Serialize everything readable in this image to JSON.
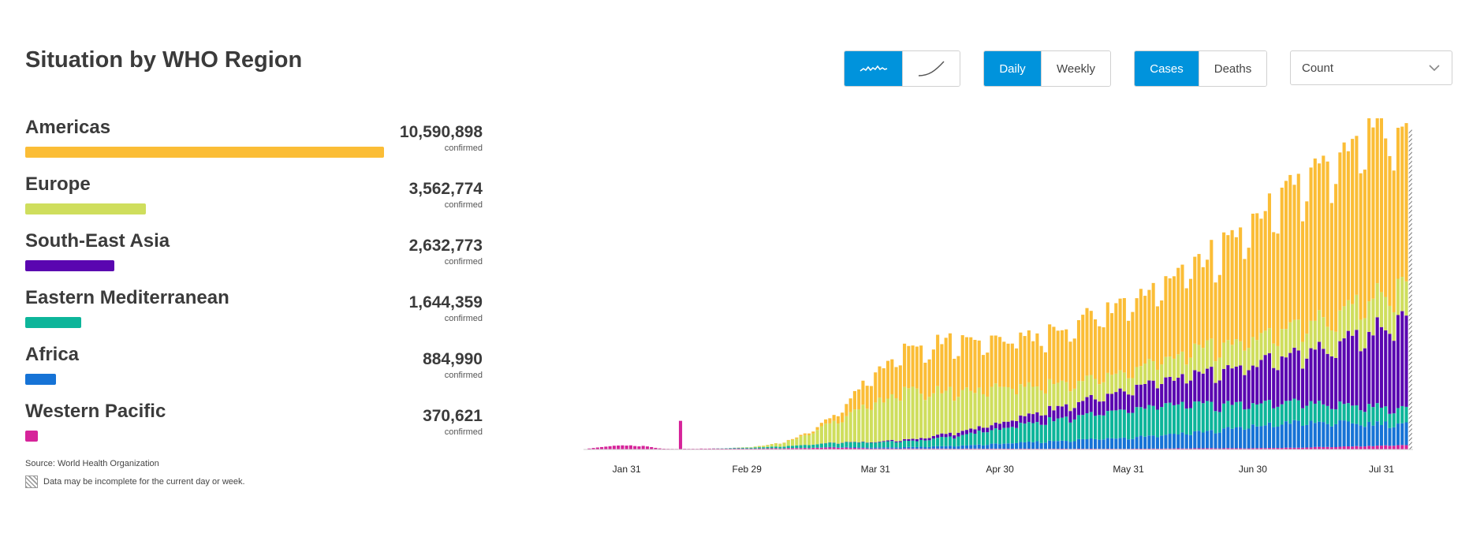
{
  "header": {
    "title": "Situation by WHO Region"
  },
  "controls": {
    "chart_style": [
      {
        "icon": "wavy-line-icon",
        "active": true
      },
      {
        "icon": "curve-line-icon",
        "active": false
      }
    ],
    "period": [
      {
        "label": "Daily",
        "active": true
      },
      {
        "label": "Weekly",
        "active": false
      }
    ],
    "metric": [
      {
        "label": "Cases",
        "active": true
      },
      {
        "label": "Deaths",
        "active": false
      }
    ],
    "scale_select": {
      "value": "Count"
    }
  },
  "regions": [
    {
      "name": "Americas",
      "count": "10,590,898",
      "sub": "confirmed",
      "color": "#fbbd36"
    },
    {
      "name": "Europe",
      "count": "3,562,774",
      "sub": "confirmed",
      "color": "#cfde5d"
    },
    {
      "name": "South-East Asia",
      "count": "2,632,773",
      "sub": "confirmed",
      "color": "#5a06b0"
    },
    {
      "name": "Eastern Mediterranean",
      "count": "1,644,359",
      "sub": "confirmed",
      "color": "#0db59a"
    },
    {
      "name": "Africa",
      "count": "884,990",
      "sub": "confirmed",
      "color": "#1673d6"
    },
    {
      "name": "Western Pacific",
      "count": "370,621",
      "sub": "confirmed",
      "color": "#d6249a"
    }
  ],
  "footer": {
    "source": "Source: World Health Organization",
    "incomplete": "Data may be incomplete for the current day or week."
  },
  "chart_data": {
    "type": "bar",
    "stacked": true,
    "x_start": "2020-01-21",
    "x_end": "2020-08-07",
    "x_ticks": [
      "Jan 31",
      "Feb 29",
      "Mar 31",
      "Apr 30",
      "May 31",
      "Jun 30",
      "Jul 31"
    ],
    "x_tick_dates": [
      "2020-01-31",
      "2020-02-29",
      "2020-03-31",
      "2020-04-30",
      "2020-05-31",
      "2020-06-30",
      "2020-07-31"
    ],
    "y_axis_shown": false,
    "grid": false,
    "last_day_incomplete": true,
    "series": [
      {
        "name": "Western Pacific",
        "color": "#d6249a",
        "anchors": [
          [
            0,
            300
          ],
          [
            6,
            2500
          ],
          [
            10,
            3000
          ],
          [
            15,
            2200
          ],
          [
            18,
            700
          ],
          [
            21,
            400
          ],
          [
            25,
            500
          ],
          [
            30,
            650
          ],
          [
            40,
            700
          ],
          [
            50,
            900
          ],
          [
            60,
            1400
          ],
          [
            70,
            700
          ],
          [
            80,
            700
          ],
          [
            90,
            600
          ],
          [
            100,
            600
          ],
          [
            110,
            500
          ],
          [
            120,
            500
          ],
          [
            130,
            500
          ],
          [
            140,
            700
          ],
          [
            150,
            900
          ],
          [
            160,
            900
          ],
          [
            170,
            1200
          ],
          [
            180,
            1900
          ],
          [
            185,
            2200
          ],
          [
            190,
            2500
          ],
          [
            198,
            3000
          ]
        ]
      },
      {
        "name": "Africa",
        "color": "#1673d6",
        "anchors": [
          [
            0,
            0
          ],
          [
            36,
            0
          ],
          [
            45,
            5
          ],
          [
            55,
            130
          ],
          [
            60,
            350
          ],
          [
            70,
            700
          ],
          [
            80,
            1100
          ],
          [
            90,
            2000
          ],
          [
            100,
            3500
          ],
          [
            110,
            5000
          ],
          [
            120,
            6500
          ],
          [
            130,
            8000
          ],
          [
            140,
            10000
          ],
          [
            150,
            12000
          ],
          [
            160,
            15000
          ],
          [
            170,
            18000
          ],
          [
            180,
            17000
          ],
          [
            190,
            16000
          ],
          [
            198,
            15000
          ]
        ]
      },
      {
        "name": "Eastern Mediterranean",
        "color": "#0db59a",
        "anchors": [
          [
            0,
            0
          ],
          [
            30,
            0
          ],
          [
            40,
            700
          ],
          [
            50,
            1600
          ],
          [
            60,
            3000
          ],
          [
            70,
            3700
          ],
          [
            80,
            4500
          ],
          [
            90,
            7000
          ],
          [
            100,
            11000
          ],
          [
            110,
            14500
          ],
          [
            120,
            17500
          ],
          [
            130,
            19000
          ],
          [
            140,
            21000
          ],
          [
            150,
            19000
          ],
          [
            160,
            16000
          ],
          [
            170,
            15000
          ],
          [
            180,
            13000
          ],
          [
            190,
            12000
          ],
          [
            198,
            11000
          ]
        ]
      },
      {
        "name": "South-East Asia",
        "color": "#5a06b0",
        "anchors": [
          [
            0,
            0
          ],
          [
            40,
            0
          ],
          [
            55,
            40
          ],
          [
            60,
            100
          ],
          [
            70,
            300
          ],
          [
            80,
            1400
          ],
          [
            90,
            2800
          ],
          [
            100,
            4000
          ],
          [
            110,
            6800
          ],
          [
            120,
            10000
          ],
          [
            130,
            14000
          ],
          [
            140,
            18000
          ],
          [
            150,
            22000
          ],
          [
            160,
            28000
          ],
          [
            170,
            32000
          ],
          [
            180,
            40000
          ],
          [
            190,
            55000
          ],
          [
            198,
            61000
          ]
        ]
      },
      {
        "name": "Europe",
        "color": "#cfde5d",
        "anchors": [
          [
            0,
            0
          ],
          [
            35,
            0
          ],
          [
            40,
            400
          ],
          [
            45,
            1500
          ],
          [
            50,
            3800
          ],
          [
            55,
            9000
          ],
          [
            60,
            16000
          ],
          [
            65,
            21000
          ],
          [
            70,
            27000
          ],
          [
            75,
            34000
          ],
          [
            80,
            33000
          ],
          [
            90,
            29000
          ],
          [
            100,
            25000
          ],
          [
            110,
            19000
          ],
          [
            120,
            15000
          ],
          [
            130,
            13000
          ],
          [
            140,
            15000
          ],
          [
            150,
            18000
          ],
          [
            160,
            18000
          ],
          [
            170,
            20000
          ],
          [
            180,
            21000
          ],
          [
            190,
            24000
          ],
          [
            198,
            25000
          ]
        ]
      },
      {
        "name": "Americas",
        "color": "#fbbd36",
        "anchors": [
          [
            0,
            0
          ],
          [
            35,
            0
          ],
          [
            40,
            10
          ],
          [
            48,
            300
          ],
          [
            55,
            1500
          ],
          [
            60,
            4000
          ],
          [
            65,
            12000
          ],
          [
            70,
            22000
          ],
          [
            75,
            26000
          ],
          [
            80,
            32000
          ],
          [
            90,
            35000
          ],
          [
            100,
            33000
          ],
          [
            110,
            35000
          ],
          [
            120,
            43000
          ],
          [
            130,
            49000
          ],
          [
            140,
            55000
          ],
          [
            150,
            62000
          ],
          [
            160,
            82000
          ],
          [
            170,
            98000
          ],
          [
            180,
            110000
          ],
          [
            190,
            120000
          ],
          [
            198,
            115000
          ]
        ]
      }
    ]
  }
}
